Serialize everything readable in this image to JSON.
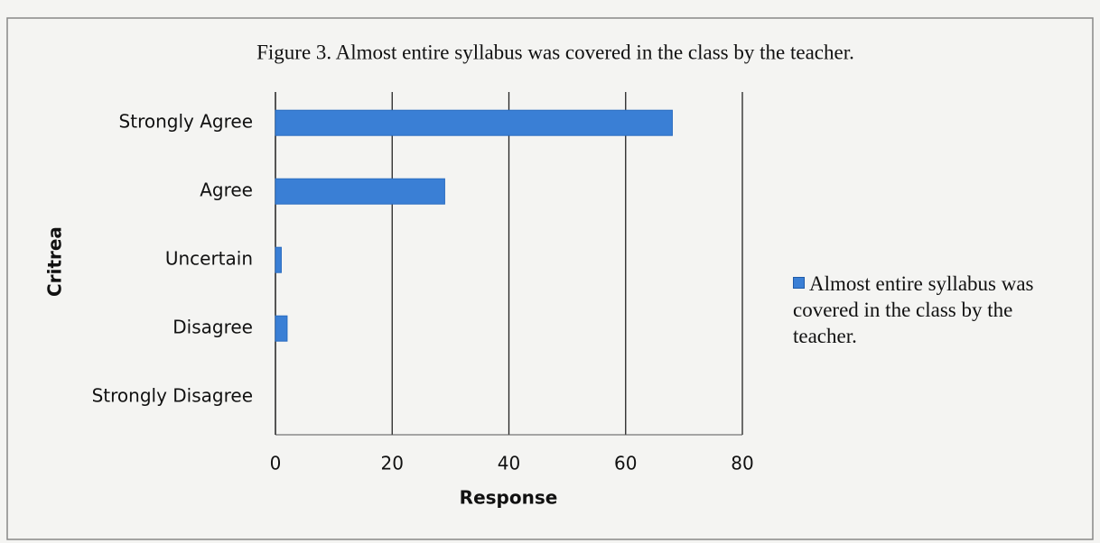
{
  "chart_data": {
    "type": "bar",
    "orientation": "horizontal",
    "title": "Figure 3. Almost entire syllabus was covered in the class by the teacher.",
    "categories": [
      "Strongly Agree",
      "Agree",
      "Uncertain",
      "Disagree",
      "Strongly Disagree"
    ],
    "series": [
      {
        "name": "Almost entire syllabus was covered in the class by the teacher.",
        "color": "#3a7fd5",
        "values": [
          68,
          29,
          1,
          2,
          0
        ]
      }
    ],
    "xlabel": "Response",
    "ylabel": "Critrea",
    "xlim": [
      0,
      80
    ],
    "xticks": [
      0,
      20,
      40,
      60,
      80
    ],
    "grid": true,
    "legend": "right"
  }
}
